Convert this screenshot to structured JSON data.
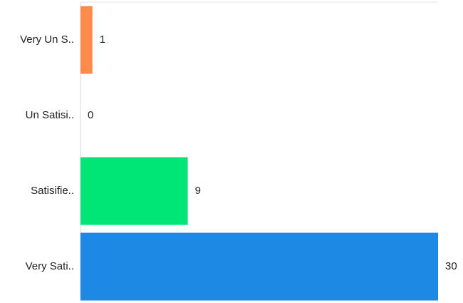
{
  "chart_data": {
    "type": "bar",
    "orientation": "horizontal",
    "categories": [
      "Very Un S..",
      "Un Satisi..",
      "Satisifie..",
      "Very Sati.."
    ],
    "values": [
      1,
      0,
      9,
      30
    ],
    "colors": [
      "#FF8A4C",
      "#9E9E9E",
      "#00E676",
      "#1E88E5"
    ],
    "xlim": [
      0,
      30
    ],
    "title": "",
    "xlabel": "",
    "ylabel": "",
    "grid": false,
    "legend": "none"
  }
}
